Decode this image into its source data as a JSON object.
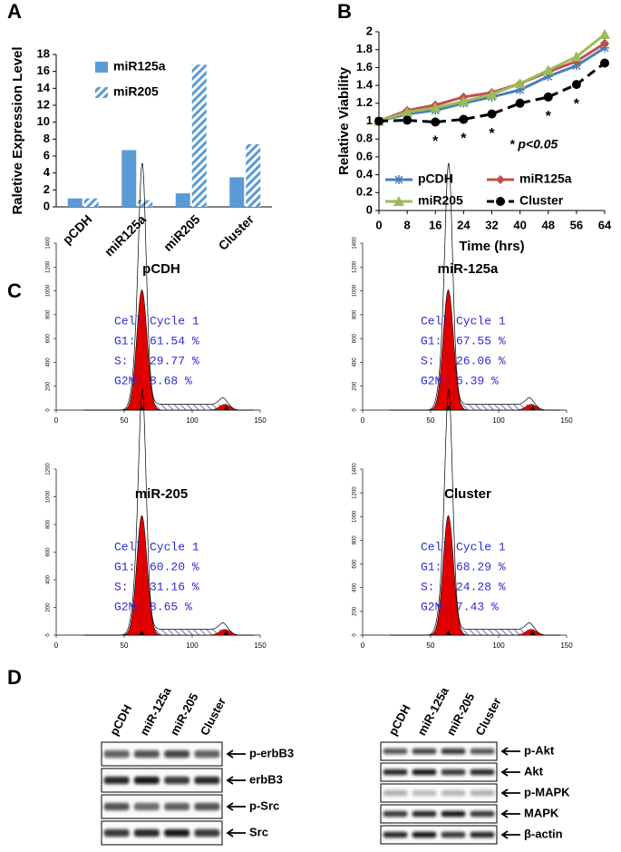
{
  "panel_labels": [
    "A",
    "B",
    "C",
    "D"
  ],
  "chart_data": [
    {
      "type": "bar",
      "ylabel": "Raletive Expression Level",
      "categories": [
        "pCDH",
        "miR125a",
        "miR205",
        "Cluster"
      ],
      "ylim": [
        0,
        18
      ],
      "yticks": [
        0,
        2,
        4,
        6,
        8,
        10,
        12,
        14,
        16,
        18
      ],
      "series": [
        {
          "name": "miR125a",
          "color": "#5b9bd5",
          "pattern": "solid",
          "values": [
            1,
            6.7,
            1.6,
            3.5
          ]
        },
        {
          "name": "miR205",
          "color": "#5b9bd5",
          "pattern": "hatch",
          "values": [
            1,
            0.8,
            16.8,
            7.4
          ]
        }
      ]
    },
    {
      "type": "line",
      "xlabel": "Time (hrs)",
      "ylabel": "Relative Viability",
      "x": [
        0,
        8,
        16,
        24,
        32,
        40,
        48,
        56,
        64
      ],
      "xlim": [
        0,
        64
      ],
      "xticks": [
        0,
        8,
        16,
        24,
        32,
        40,
        48,
        56,
        64
      ],
      "ylim": [
        0,
        2
      ],
      "yticks": [
        0,
        0.2,
        0.4,
        0.6,
        0.8,
        1,
        1.2,
        1.4,
        1.6,
        1.8,
        2
      ],
      "series": [
        {
          "name": "pCDH",
          "color": "#4a7ebb",
          "marker": "star",
          "dashed": false,
          "values": [
            1,
            1.08,
            1.12,
            1.2,
            1.27,
            1.35,
            1.5,
            1.62,
            1.82
          ]
        },
        {
          "name": "miR125a",
          "color": "#c0504d",
          "marker": "diamond",
          "dashed": false,
          "values": [
            1,
            1.12,
            1.18,
            1.27,
            1.32,
            1.42,
            1.55,
            1.67,
            1.87
          ]
        },
        {
          "name": "miR205",
          "color": "#9bbb59",
          "marker": "triangle",
          "dashed": false,
          "values": [
            1,
            1.1,
            1.15,
            1.22,
            1.3,
            1.42,
            1.57,
            1.72,
            1.97
          ]
        },
        {
          "name": "Cluster",
          "color": "#000000",
          "marker": "circle",
          "dashed": true,
          "values": [
            1,
            1.01,
            0.99,
            1.02,
            1.08,
            1.2,
            1.27,
            1.41,
            1.65
          ]
        }
      ],
      "annotations": [
        {
          "text": "*",
          "x": 16
        },
        {
          "text": "*",
          "x": 24
        },
        {
          "text": "*",
          "x": 32
        },
        {
          "text": "*",
          "x": 48
        },
        {
          "text": "*",
          "x": 56
        }
      ],
      "note": "* p<0.05"
    }
  ],
  "cell_cycle": [
    {
      "title": "pCDH",
      "lines": [
        "Cell Cycle 1",
        "G1:  61.54 %",
        "S:   29.77 %",
        "G2M: 8.68 %"
      ],
      "xticks": [
        0,
        50,
        100,
        150
      ],
      "yticks": [
        0,
        200,
        400,
        600,
        800,
        1000,
        1200,
        1400
      ]
    },
    {
      "title": "miR-125a",
      "lines": [
        "Cell Cycle 1",
        "G1:  67.55 %",
        "S:   26.06 %",
        "G2M: 6.39 %"
      ],
      "xticks": [
        0,
        50,
        100,
        150
      ],
      "yticks": [
        0,
        200,
        400,
        600,
        800,
        1000,
        1200,
        1400
      ]
    },
    {
      "title": "miR-205",
      "lines": [
        "Cell Cycle 1",
        "G1:  60.20 %",
        "S:   31.16 %",
        "G2M: 8.65 %"
      ],
      "xticks": [
        0,
        50,
        100,
        150
      ],
      "yticks": [
        0,
        200,
        400,
        600,
        800,
        1000,
        1200
      ]
    },
    {
      "title": "Cluster",
      "lines": [
        "Cell Cycle 1",
        "G1:  68.29 %",
        "S:   24.28 %",
        "G2M: 7.43 %"
      ],
      "xticks": [
        0,
        50,
        100,
        150
      ],
      "yticks": [
        0,
        200,
        400,
        600,
        800,
        1000,
        1200,
        1400
      ]
    }
  ],
  "blots": {
    "left": {
      "lanes": [
        "pCDH",
        "miR-125a",
        "miR-205",
        "Cluster"
      ],
      "bands": [
        "p-erbB3",
        "erbB3",
        "p-Src",
        "Src"
      ]
    },
    "right": {
      "lanes": [
        "pCDH",
        "miR-125a",
        "miR-205",
        "Cluster"
      ],
      "bands": [
        "p-Akt",
        "Akt",
        "p-MAPK",
        "MAPK",
        "β-actin"
      ]
    }
  }
}
